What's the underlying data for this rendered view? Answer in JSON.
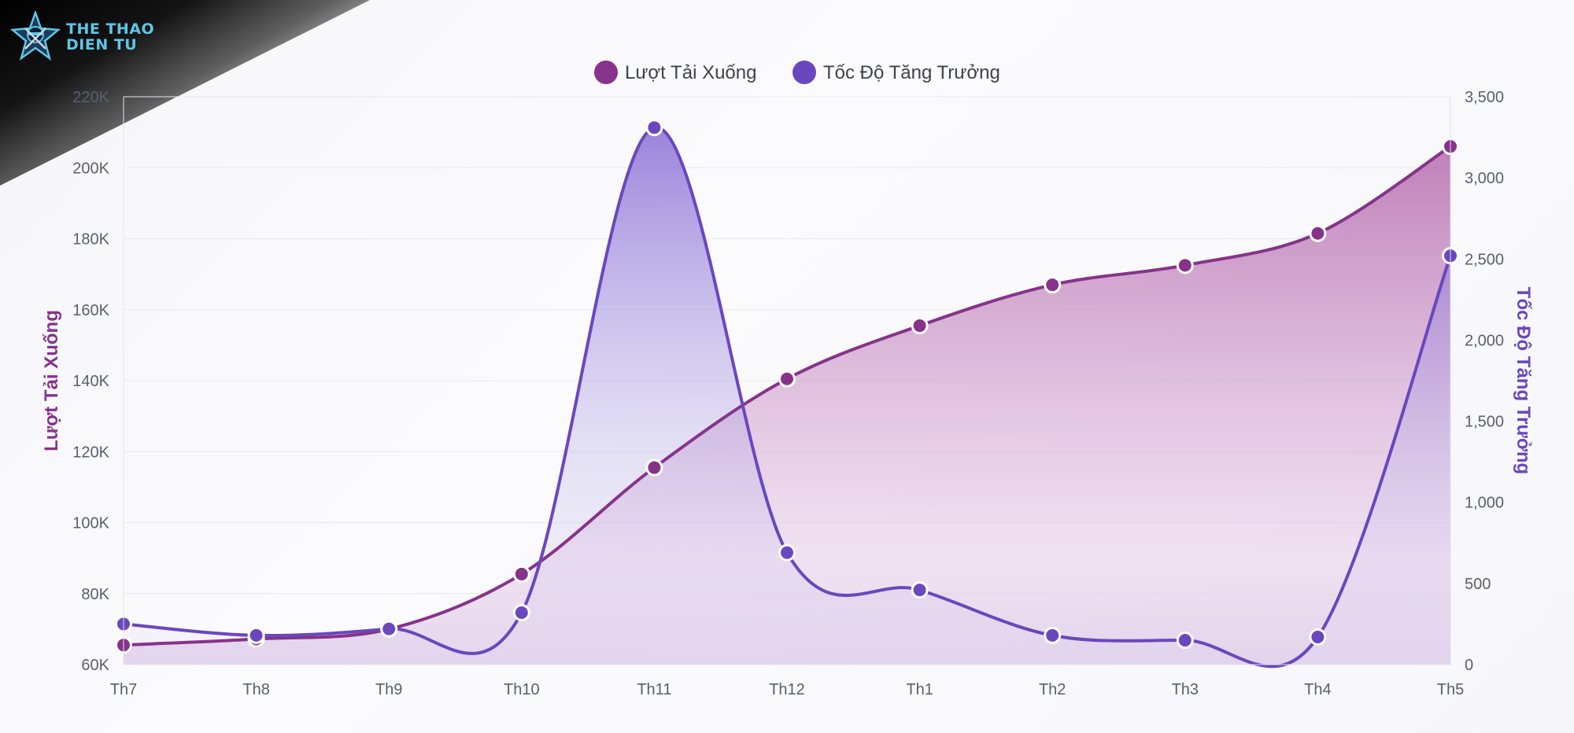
{
  "brand": {
    "line1": "THE THAO",
    "line2": "DIEN TU",
    "icon": "ninja-star-icon",
    "color": "#5ec6e6"
  },
  "chart_data": {
    "type": "line",
    "subtype": "smooth-area-dual-axis",
    "categories": [
      "Th7",
      "Th8",
      "Th9",
      "Th10",
      "Th11",
      "Th12",
      "Th1",
      "Th2",
      "Th3",
      "Th4",
      "Th5"
    ],
    "series": [
      {
        "name": "Lượt Tải Xuống",
        "axis": "left",
        "color": "#86338a",
        "values": [
          65500,
          67200,
          70000,
          85500,
          115500,
          140500,
          155500,
          167000,
          172500,
          181500,
          206000
        ]
      },
      {
        "name": "Tốc Độ Tăng Trưởng",
        "axis": "right",
        "color": "#6a47be",
        "values": [
          250,
          180,
          220,
          320,
          3310,
          690,
          460,
          180,
          150,
          170,
          2520
        ]
      }
    ],
    "y_left": {
      "label": "Lượt Tải Xuống",
      "range": [
        60000,
        220000
      ],
      "ticks": [
        "60K",
        "80K",
        "100K",
        "120K",
        "140K",
        "160K",
        "180K",
        "200K",
        "220K"
      ]
    },
    "y_right": {
      "label": "Tốc Độ Tăng Trưởng",
      "range": [
        0,
        3500
      ],
      "ticks": [
        "0",
        "500",
        "1,000",
        "1,500",
        "2,000",
        "2,500",
        "3,000",
        "3,500"
      ]
    },
    "grid": true,
    "legend": "top-center"
  }
}
